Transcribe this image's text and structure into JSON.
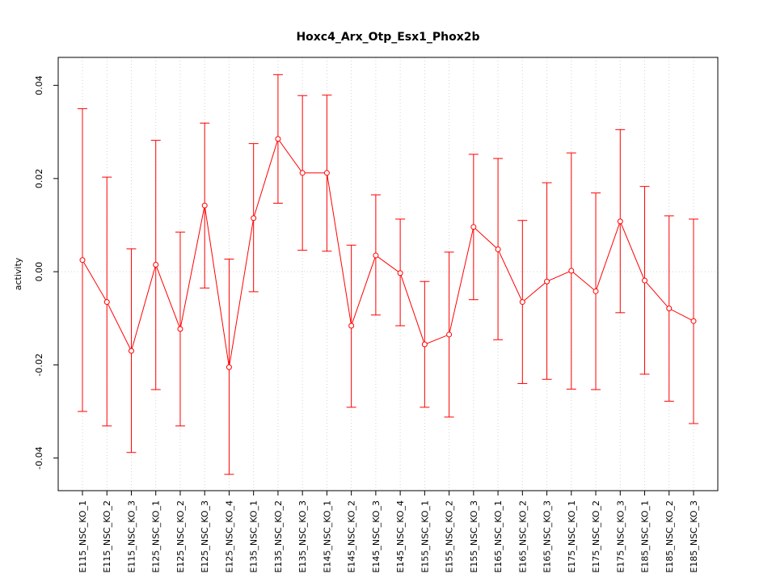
{
  "chart_data": {
    "type": "line",
    "title": "Hoxc4_Arx_Otp_Esx1_Phox2b",
    "xlabel": "",
    "ylabel": "activity",
    "ylim": [
      -0.047,
      0.046
    ],
    "y_ticks": [
      -0.04,
      -0.02,
      0.0,
      0.02,
      0.04
    ],
    "y_tick_labels": [
      "-0.04",
      "-0.02",
      "0.00",
      "0.02",
      "0.04"
    ],
    "grid": true,
    "color": "#ff0000",
    "categories": [
      "E115_NSC_KO_1",
      "E115_NSC_KO_2",
      "E115_NSC_KO_3",
      "E125_NSC_KO_1",
      "E125_NSC_KO_2",
      "E125_NSC_KO_3",
      "E125_NSC_KO_4",
      "E135_NSC_KO_1",
      "E135_NSC_KO_2",
      "E135_NSC_KO_3",
      "E145_NSC_KO_1",
      "E145_NSC_KO_2",
      "E145_NSC_KO_3",
      "E145_NSC_KO_4",
      "E155_NSC_KO_1",
      "E155_NSC_KO_2",
      "E155_NSC_KO_3",
      "E165_NSC_KO_1",
      "E165_NSC_KO_2",
      "E165_NSC_KO_3",
      "E175_NSC_KO_1",
      "E175_NSC_KO_2",
      "E175_NSC_KO_3",
      "E185_NSC_KO_1",
      "E185_NSC_KO_2",
      "E185_NSC_KO_3"
    ],
    "values": [
      0.0025,
      -0.0065,
      -0.017,
      0.0015,
      -0.0123,
      0.0142,
      -0.0205,
      0.0115,
      0.0285,
      0.0212,
      0.0212,
      -0.0116,
      0.0035,
      -0.0003,
      -0.0156,
      -0.0135,
      0.0096,
      0.0048,
      -0.0065,
      -0.0021,
      0.0002,
      -0.0042,
      0.0108,
      -0.0019,
      -0.0079,
      -0.0106
    ],
    "upper": [
      0.035,
      0.0203,
      0.0049,
      0.0282,
      0.0085,
      0.0319,
      0.0027,
      0.0275,
      0.0423,
      0.0378,
      0.0379,
      0.0057,
      0.0165,
      0.0113,
      -0.0021,
      0.0042,
      0.0252,
      0.0243,
      0.011,
      0.0191,
      0.0255,
      0.0169,
      0.0305,
      0.0183,
      0.012,
      0.0113
    ],
    "lower": [
      -0.03,
      -0.0331,
      -0.0388,
      -0.0253,
      -0.0331,
      -0.0035,
      -0.0435,
      -0.0043,
      0.0147,
      0.0046,
      0.0044,
      -0.0291,
      -0.0093,
      -0.0116,
      -0.0291,
      -0.0312,
      -0.006,
      -0.0146,
      -0.024,
      -0.0231,
      -0.0252,
      -0.0253,
      -0.0088,
      -0.022,
      -0.0278,
      -0.0326
    ]
  }
}
